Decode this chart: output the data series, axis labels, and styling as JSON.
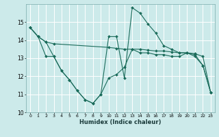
{
  "xlabel": "Humidex (Indice chaleur)",
  "bg_color": "#cceaea",
  "grid_color": "#ffffff",
  "line_color": "#1a6b5a",
  "xlim": [
    -0.5,
    23.5
  ],
  "ylim": [
    10,
    16
  ],
  "yticks": [
    10,
    11,
    12,
    13,
    14,
    15
  ],
  "xticks": [
    0,
    1,
    2,
    3,
    4,
    5,
    6,
    7,
    8,
    9,
    10,
    11,
    12,
    13,
    14,
    15,
    16,
    17,
    18,
    19,
    20,
    21,
    22,
    23
  ],
  "xtick_labels": [
    "0",
    "1",
    "2",
    "3",
    "4",
    "5",
    "6",
    "7",
    "8",
    "9",
    "10",
    "11",
    "12",
    "13",
    "14",
    "15",
    "16",
    "17",
    "18",
    "19",
    "20",
    "21",
    "22",
    "23"
  ],
  "series": [
    {
      "x": [
        0,
        1,
        2,
        3,
        10,
        11,
        12,
        13,
        14,
        15,
        16,
        17,
        18,
        19,
        20,
        21,
        22,
        23
      ],
      "y": [
        14.7,
        14.2,
        13.9,
        13.8,
        13.6,
        13.55,
        13.5,
        13.5,
        13.5,
        13.45,
        13.4,
        13.4,
        13.35,
        13.3,
        13.3,
        13.25,
        13.1,
        11.1
      ]
    },
    {
      "x": [
        0,
        1,
        2,
        3,
        4,
        5,
        6,
        7,
        8,
        9,
        10,
        11,
        12,
        13,
        14,
        15,
        16,
        17,
        18,
        19,
        20,
        21,
        22,
        23
      ],
      "y": [
        14.7,
        14.2,
        13.9,
        13.1,
        12.3,
        11.8,
        11.2,
        10.7,
        10.5,
        11.0,
        11.9,
        12.1,
        12.5,
        13.5,
        13.3,
        13.3,
        13.2,
        13.2,
        13.1,
        13.1,
        13.3,
        13.1,
        12.6,
        11.1
      ]
    },
    {
      "x": [
        0,
        1,
        2,
        3,
        4,
        5,
        6,
        7,
        8,
        9,
        10,
        11,
        12,
        13,
        14,
        15,
        16,
        17,
        18,
        19,
        20,
        21,
        22,
        23
      ],
      "y": [
        14.7,
        14.2,
        13.1,
        13.1,
        12.3,
        11.8,
        11.2,
        10.7,
        10.5,
        11.0,
        14.2,
        14.2,
        11.9,
        15.8,
        15.5,
        14.9,
        14.4,
        13.7,
        13.5,
        13.3,
        13.3,
        13.2,
        12.6,
        11.1
      ]
    }
  ]
}
